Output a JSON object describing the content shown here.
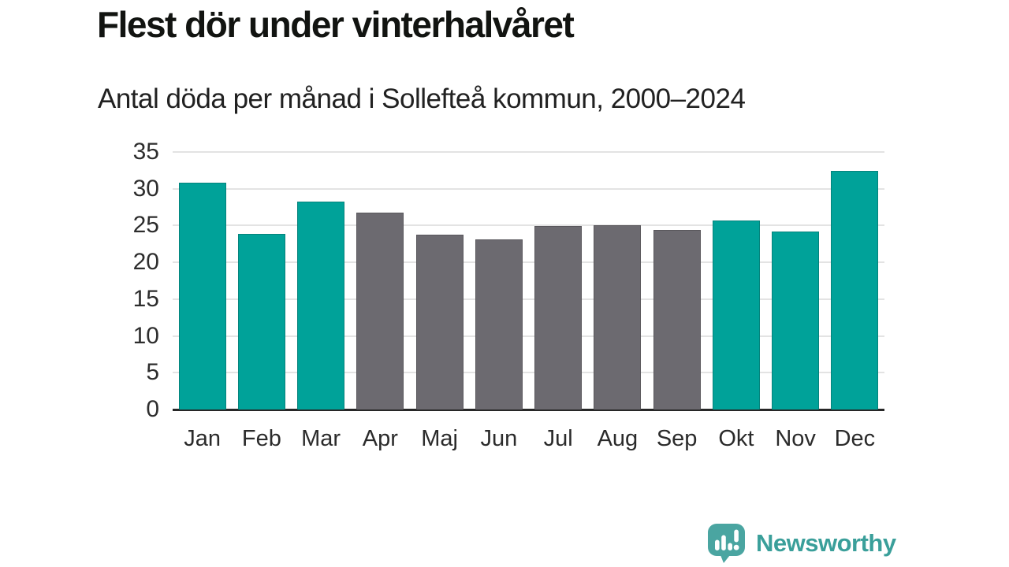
{
  "title": "Flest dör under vinterhalvåret",
  "subtitle": "Antal döda per månad i Sollefteå kommun, 2000–2024",
  "chart_data": {
    "type": "bar",
    "title": "Flest dör under vinterhalvåret",
    "subtitle": "Antal döda per månad i Sollefteå kommun, 2000–2024",
    "categories": [
      "Jan",
      "Feb",
      "Mar",
      "Apr",
      "Maj",
      "Jun",
      "Jul",
      "Aug",
      "Sep",
      "Okt",
      "Nov",
      "Dec"
    ],
    "values": [
      30.8,
      23.9,
      28.3,
      26.8,
      23.8,
      23.1,
      24.9,
      25.1,
      24.4,
      25.7,
      24.2,
      32.4
    ],
    "highlighted_winter_months": [
      true,
      true,
      true,
      false,
      false,
      false,
      false,
      false,
      false,
      true,
      true,
      true
    ],
    "xlabel": "",
    "ylabel": "",
    "ylim": [
      0,
      35
    ],
    "y_ticks": [
      0,
      5,
      10,
      15,
      20,
      25,
      30,
      35
    ],
    "grid": "horizontal",
    "legend": "none"
  },
  "colors": {
    "winter_bar": "#00a299",
    "other_bar": "#6c6a70",
    "gridline": "#e3e3e3",
    "axis_line": "#272727",
    "title_text": "#121411",
    "subtitle_text": "#212121",
    "tick_text": "#2d2d2d",
    "logo_icon_teal": "#4aa5a1",
    "logo_text_teal": "#3a9f9a"
  },
  "footer": {
    "brand": "Newsworthy",
    "logo_icon": "newsworthy-speech-bubble-bar-chart-icon"
  }
}
